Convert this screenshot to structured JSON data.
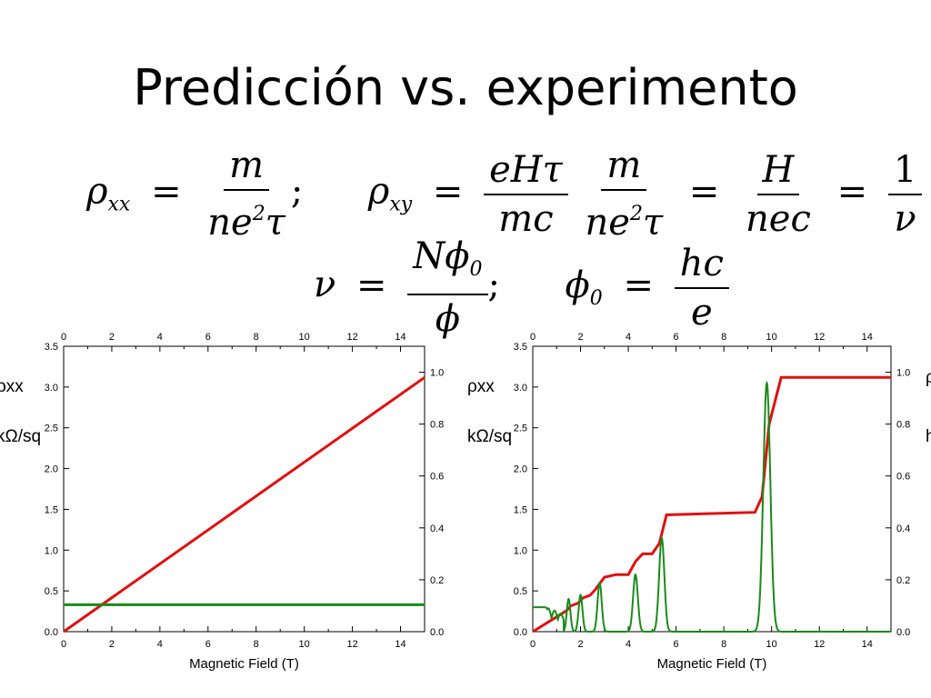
{
  "title": "Predicción vs. experimento",
  "equations": {
    "rho": "ρ",
    "xx": "xx",
    "xy": "xy",
    "equals": "=",
    "semicolon": ";",
    "m": "m",
    "ne": "ne",
    "two": "2",
    "tau": "τ",
    "eHtau": "eHτ",
    "mc": "mc",
    "H": "H",
    "nec": "nec",
    "one": "1",
    "nu": "ν",
    "h": "h",
    "e": "e",
    "N": "N",
    "phi": "ϕ",
    "zero": "0",
    "hc": "hc"
  },
  "chart_data": [
    {
      "type": "line",
      "xlabel": "Magnetic Field  (T)",
      "left_axis_label_line1": "ρxx",
      "left_axis_label_line2": "kΩ/sq",
      "xlim": [
        0,
        15
      ],
      "ylim_left": [
        0,
        3.5
      ],
      "ylim_right": [
        0,
        1.1
      ],
      "x_ticks": [
        "0",
        "2",
        "4",
        "6",
        "8",
        "10",
        "12",
        "14"
      ],
      "y_left_ticks": [
        "0.0",
        "0.5",
        "1.0",
        "1.5",
        "2.0",
        "2.5",
        "3.0",
        "3.5"
      ],
      "y_right_ticks": [
        "0.0",
        "0.2",
        "0.4",
        "0.6",
        "0.8",
        "1.0"
      ],
      "colors": {
        "red": "#e01010",
        "green": "#1a8a1a"
      },
      "series": [
        {
          "axis": "right",
          "color": "red",
          "x": [
            0,
            15
          ],
          "y": [
            0.0,
            0.98
          ]
        },
        {
          "axis": "left",
          "color": "green",
          "x": [
            0,
            15
          ],
          "y": [
            0.33,
            0.33
          ]
        }
      ]
    },
    {
      "type": "line",
      "xlabel": "Magnetic Field  (T)",
      "left_axis_label_line1": "ρxx",
      "left_axis_label_line2": "kΩ/sq",
      "right_axis_label_line1": "ρ",
      "right_axis_label_line2": "h",
      "xlim": [
        0,
        15
      ],
      "ylim_left": [
        0,
        3.5
      ],
      "ylim_right": [
        0,
        1.1
      ],
      "x_ticks": [
        "0",
        "2",
        "4",
        "6",
        "8",
        "10",
        "12",
        "14"
      ],
      "y_left_ticks": [
        "0.0",
        "0.5",
        "1.0",
        "1.5",
        "2.0",
        "2.5",
        "3.0",
        "3.5"
      ],
      "y_right_ticks": [
        "0.0",
        "0.2",
        "0.4",
        "0.6",
        "0.8",
        "1.0"
      ],
      "colors": {
        "red": "#e01010",
        "green": "#1a8a1a"
      },
      "series": [
        {
          "axis": "right",
          "color": "red",
          "x": [
            0,
            1.4,
            1.6,
            1.9,
            2.1,
            2.4,
            2.6,
            3.0,
            3.5,
            4.0,
            4.3,
            4.6,
            5.0,
            5.3,
            5.6,
            9.3,
            9.6,
            9.9,
            10.4,
            15
          ],
          "y": [
            0.0,
            0.08,
            0.1,
            0.11,
            0.13,
            0.14,
            0.16,
            0.21,
            0.22,
            0.22,
            0.27,
            0.3,
            0.3,
            0.34,
            0.45,
            0.46,
            0.52,
            0.8,
            0.98,
            0.98
          ]
        },
        {
          "axis": "left",
          "color": "green",
          "peaks": [
            {
              "center": 1.5,
              "height": 0.4
            },
            {
              "center": 2.0,
              "height": 0.45
            },
            {
              "center": 2.8,
              "height": 0.6
            },
            {
              "center": 4.3,
              "height": 0.7
            },
            {
              "center": 5.4,
              "height": 1.15
            },
            {
              "center": 9.8,
              "height": 3.05
            }
          ],
          "baseline": [
            [
              0,
              0.3
            ],
            [
              0.5,
              0.3
            ],
            [
              1.0,
              0.25
            ],
            [
              1.3,
              0.2
            ]
          ]
        }
      ]
    }
  ]
}
